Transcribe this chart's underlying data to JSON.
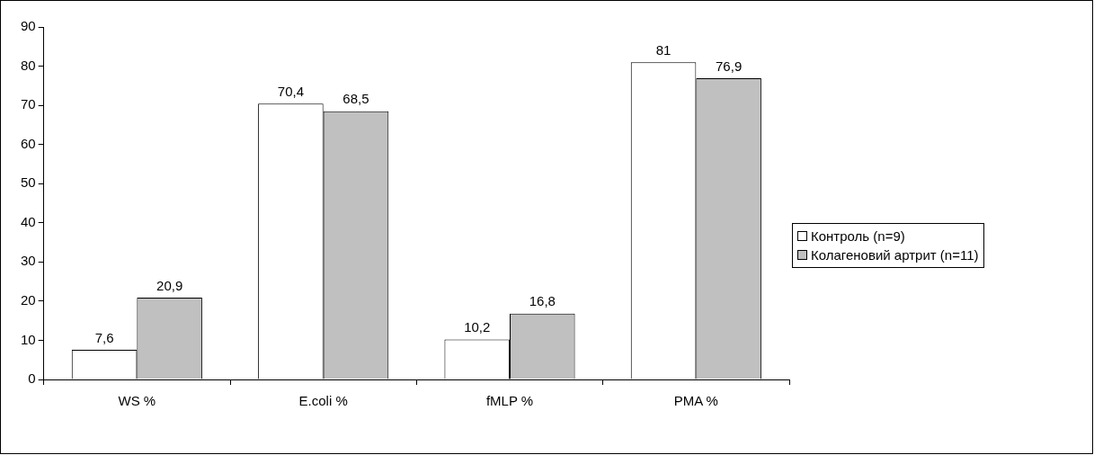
{
  "chart_data": {
    "type": "bar",
    "categories": [
      "WS %",
      "E.coli %",
      "fMLP %",
      "PMA %"
    ],
    "series": [
      {
        "name": "Контроль (n=9)",
        "color": "#ffffff",
        "values": [
          7.6,
          70.4,
          10.2,
          81
        ],
        "value_labels": [
          "7,6",
          "70,4",
          "10,2",
          "81"
        ]
      },
      {
        "name": "Колагеновий артрит (n=11)",
        "color": "#c0c0c0",
        "values": [
          20.9,
          68.5,
          16.8,
          76.9
        ],
        "value_labels": [
          "20,9",
          "68,5",
          "16,8",
          "76,9"
        ]
      }
    ],
    "ylim": [
      0,
      90
    ],
    "yticks": [
      0,
      10,
      20,
      30,
      40,
      50,
      60,
      70,
      80,
      90
    ],
    "grid": false,
    "legend": "right"
  }
}
